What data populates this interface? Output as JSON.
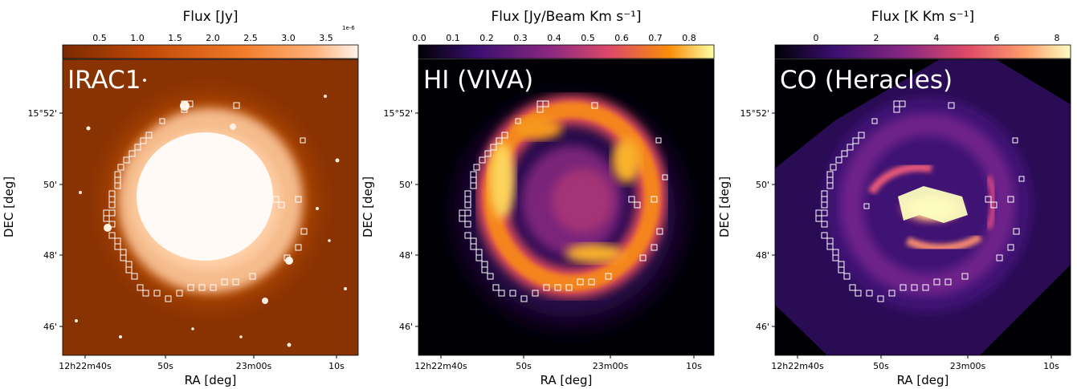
{
  "panels": [
    {
      "id": "irac1",
      "label": "IRAC1",
      "colorbar_title": "Flux [Jy]",
      "colorbar_ticks": [
        "0.5",
        "1.0",
        "1.5",
        "2.0",
        "2.5",
        "3.0",
        "3.5"
      ],
      "colorbar_exponent": "1e-6",
      "colormap": [
        "#7a2a00",
        "#c24a08",
        "#f07a28",
        "#ffb27a",
        "#fff3ea"
      ],
      "ylabel": "DEC [deg]",
      "xlabel": "RA [deg]",
      "yticks": [
        "15°52'",
        "50'",
        "48'",
        "46'"
      ],
      "xticks": [
        "12h22m40s",
        "50s",
        "23m00s",
        "10s"
      ]
    },
    {
      "id": "hi",
      "label": "HI (VIVA)",
      "colorbar_title": "Flux [Jy/Beam Km s⁻¹]",
      "colorbar_ticks": [
        "0.0",
        "0.1",
        "0.2",
        "0.3",
        "0.4",
        "0.5",
        "0.6",
        "0.7",
        "0.8"
      ],
      "colormap": [
        "#000004",
        "#3b0f70",
        "#8c2981",
        "#de4968",
        "#f98e09",
        "#fcffa4"
      ],
      "ylabel": "DEC [deg]",
      "xlabel": "RA [deg]",
      "yticks": [
        "15°52'",
        "50'",
        "48'",
        "46'"
      ],
      "xticks": [
        "12h22m40s",
        "50s",
        "23m00s",
        "10s"
      ]
    },
    {
      "id": "co",
      "label": "CO (Heracles)",
      "colorbar_title": "Flux [K Km s⁻¹]",
      "colorbar_ticks": [
        "0",
        "2",
        "4",
        "6",
        "8"
      ],
      "colormap": [
        "#000004",
        "#3b0f70",
        "#8c2981",
        "#de4968",
        "#fe9f6d",
        "#fcfdbf"
      ],
      "ylabel": "DEC [deg]",
      "xlabel": "RA [deg]",
      "yticks": [
        "15°52'",
        "50'",
        "48'",
        "46'"
      ],
      "xticks": [
        "12h22m40s",
        "50s",
        "23m00s",
        "10s"
      ]
    }
  ]
}
